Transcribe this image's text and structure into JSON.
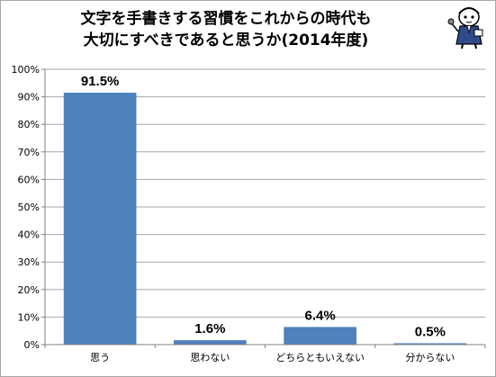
{
  "chart_data": {
    "type": "bar",
    "title_line1": "文字を手書きする習慣をこれからの時代も",
    "title_line2": "大切にすべきであると思うか(2014年度)",
    "categories": [
      "思う",
      "思わない",
      "どちらともいえない",
      "分からない"
    ],
    "values": [
      91.5,
      1.6,
      6.4,
      0.5
    ],
    "data_labels": [
      "91.5%",
      "1.6%",
      "6.4%",
      "0.5%"
    ],
    "y_ticks": [
      "0%",
      "10%",
      "20%",
      "30%",
      "40%",
      "50%",
      "60%",
      "70%",
      "80%",
      "90%",
      "100%"
    ],
    "ylim": [
      0,
      100
    ],
    "grid": true,
    "bar_color": "#4f81bd",
    "legend": "none"
  },
  "mascot": {
    "icon": "reporter-mascot-icon"
  }
}
